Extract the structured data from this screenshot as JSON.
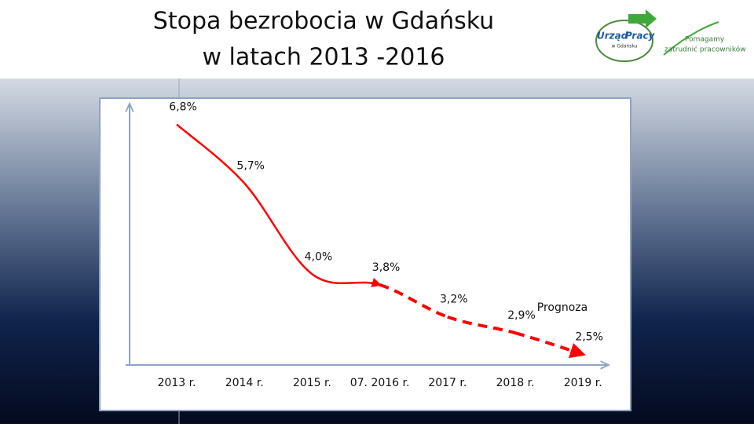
{
  "chart_data": {
    "type": "line",
    "title": [
      "Stopa bezrobocia w Gdańsku",
      "w latach 2013 -2016"
    ],
    "annotation": "Prognoza",
    "categories": [
      "2013 r.",
      "2014 r.",
      "2015 r.",
      "07. 2016 r.",
      "2017 r.",
      "2018 r.",
      "2019 r."
    ],
    "values": [
      6.8,
      5.7,
      4.0,
      3.8,
      3.2,
      2.9,
      2.5
    ],
    "value_labels": [
      "6,8%",
      "5,7%",
      "4,0%",
      "3,8%",
      "3,2%",
      "2,9%",
      "2,5%"
    ],
    "segment_styles": [
      "solid",
      "solid",
      "solid",
      "dashed",
      "dashed",
      "dashed"
    ],
    "color": "#ff0000",
    "ylim": [
      2.3,
      7
    ]
  },
  "logo": {
    "name_a": "Urząd",
    "name_b": "Pracy",
    "city": "w Gdańsku",
    "slogan": [
      "Pomagamy",
      "zatrudnić pracowników"
    ]
  }
}
